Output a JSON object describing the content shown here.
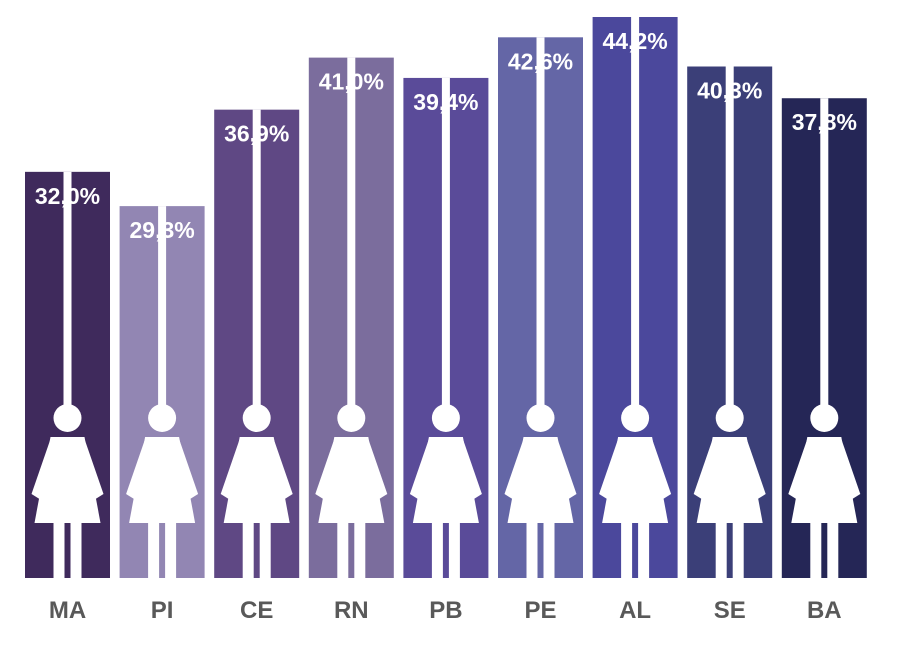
{
  "chart_data": {
    "type": "bar",
    "categories": [
      "MA",
      "PI",
      "CE",
      "RN",
      "PB",
      "PE",
      "AL",
      "SE",
      "BA"
    ],
    "values": [
      32.0,
      29.3,
      36.9,
      41.0,
      39.4,
      42.6,
      44.2,
      40.3,
      37.8
    ],
    "value_labels": [
      "32,0%",
      "29,3%",
      "36,9%",
      "41,0%",
      "39,4%",
      "42,6%",
      "44,2%",
      "40,3%",
      "37,8%"
    ],
    "colors": [
      "#3f2a5c",
      "#9286b3",
      "#5f4884",
      "#7b6d9d",
      "#5a4b99",
      "#6466a6",
      "#4b489c",
      "#3b3f78",
      "#252656"
    ],
    "ylim": [
      0,
      44.2
    ],
    "icon": "woman-figure-icon",
    "grid": false,
    "legend": "none"
  }
}
